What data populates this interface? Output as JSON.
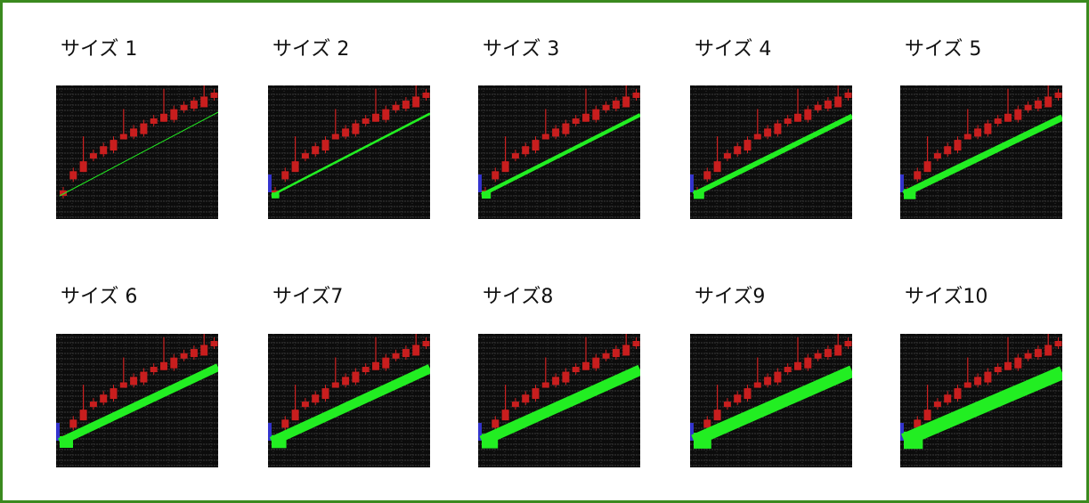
{
  "labels": [
    "サイズ 1",
    "サイズ 2",
    "サイズ 3",
    "サイズ 4",
    "サイズ 5",
    "サイズ 6",
    "サイズ7",
    "サイズ8",
    "サイズ9",
    "サイズ10"
  ]
}
